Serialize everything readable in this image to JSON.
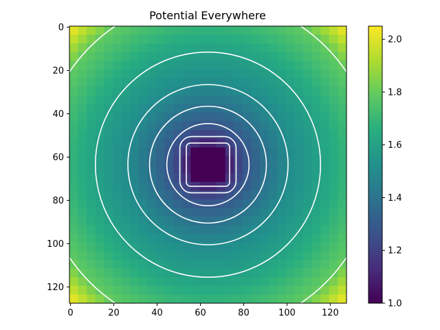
{
  "chart_data": {
    "type": "heatmap",
    "title": "Potential Everywhere",
    "xlabel": "",
    "ylabel": "",
    "grid_size": 128,
    "xlim": [
      0,
      128
    ],
    "ylim": [
      128,
      0
    ],
    "x_ticks": [
      0,
      20,
      40,
      60,
      80,
      100,
      120
    ],
    "y_ticks": [
      0,
      20,
      40,
      60,
      80,
      100,
      120
    ],
    "colormap": "viridis",
    "colorbar": {
      "range": [
        1.0,
        2.05
      ],
      "ticks": [
        "1.0",
        "1.2",
        "1.4",
        "1.6",
        "1.8",
        "2.0"
      ]
    },
    "field": {
      "description_center": [
        63.5,
        63.5
      ],
      "plate_half_width": 9,
      "plate_value": 1.0,
      "corner_value": 2.05
    },
    "contours": [
      {
        "level": 1.1,
        "half_width": 10,
        "shape": "rounded-square"
      },
      {
        "level": 1.2,
        "half_width": 13,
        "shape": "rounded-square"
      },
      {
        "level": 1.3,
        "half_width": 19,
        "shape": "circle"
      },
      {
        "level": 1.4,
        "half_width": 27,
        "shape": "circle"
      },
      {
        "level": 1.5,
        "half_width": 37,
        "shape": "circle"
      },
      {
        "level": 1.6,
        "half_width": 52,
        "shape": "circle"
      },
      {
        "level": 1.8,
        "half_width": 77,
        "shape": "circle"
      }
    ],
    "colors": {
      "contour": "#ffffff"
    }
  }
}
